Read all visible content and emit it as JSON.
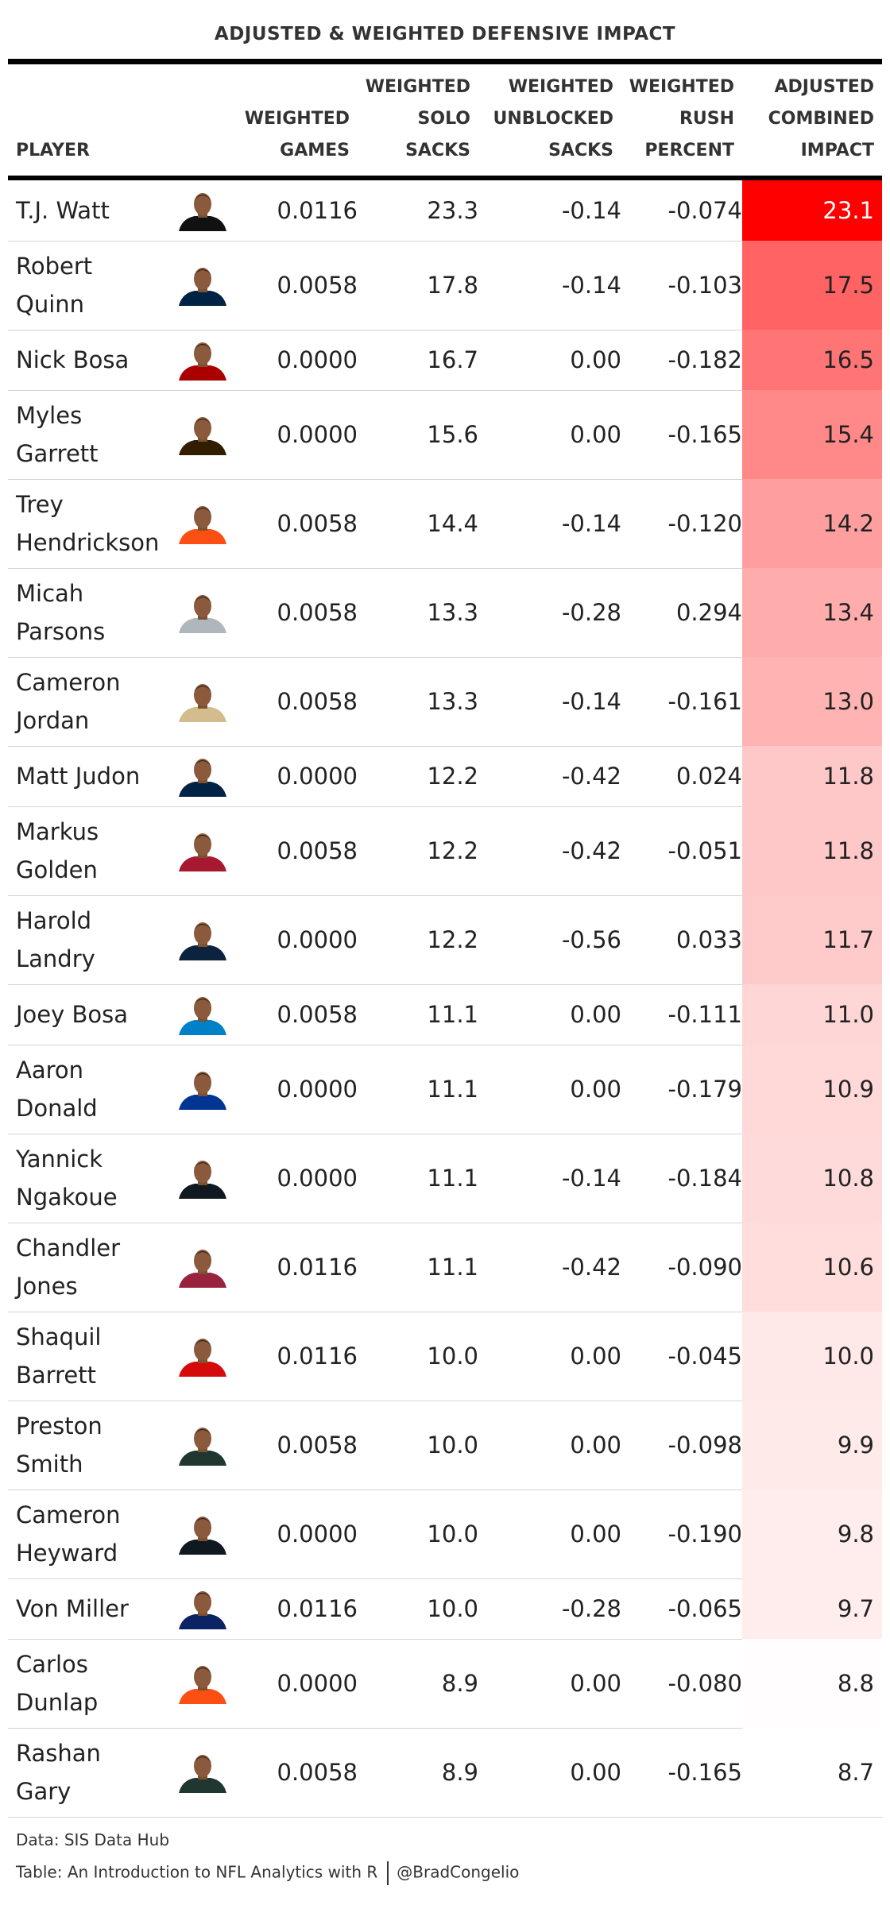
{
  "title": "ADJUSTED & WEIGHTED DEFENSIVE IMPACT",
  "headers": {
    "player": [
      "PLAYER"
    ],
    "games": [
      "WEIGHTED",
      "GAMES"
    ],
    "solo": [
      "WEIGHTED",
      "SOLO",
      "SACKS"
    ],
    "unblocked": [
      "WEIGHTED",
      "UNBLOCKED",
      "SACKS"
    ],
    "rush": [
      "WEIGHTED",
      "RUSH",
      "PERCENT"
    ],
    "impact": [
      "ADJUSTED",
      "COMBINED",
      "IMPACT"
    ]
  },
  "colors": {
    "scale_high": "#ff0000",
    "scale_low": "#ffffff",
    "text_dark": "#222222",
    "text_light": "#ffffff",
    "headshot_team_colors": [
      "#111111",
      "#002244",
      "#aa0000",
      "#311d00",
      "#fb4f14",
      "#b0b7bc",
      "#d3bc8d",
      "#002244",
      "#a71930",
      "#0c2340",
      "#0080c6",
      "#003594",
      "#101820",
      "#97233f",
      "#d50a0a",
      "#203731",
      "#101820",
      "#0b2265",
      "#fb4f14",
      "#203731"
    ]
  },
  "chart_data": {
    "type": "table",
    "title": "ADJUSTED & WEIGHTED DEFENSIVE IMPACT",
    "columns": [
      "PLAYER",
      "WEIGHTED GAMES",
      "WEIGHTED SOLO SACKS",
      "WEIGHTED UNBLOCKED SACKS",
      "WEIGHTED RUSH PERCENT",
      "ADJUSTED COMBINED IMPACT"
    ],
    "rows": [
      {
        "player": [
          "T.J. Watt"
        ],
        "games": "0.0116",
        "solo": "23.3",
        "unblocked": "-0.14",
        "rush": "-0.074",
        "impact": "23.1"
      },
      {
        "player": [
          "Robert",
          "Quinn"
        ],
        "games": "0.0058",
        "solo": "17.8",
        "unblocked": "-0.14",
        "rush": "-0.103",
        "impact": "17.5"
      },
      {
        "player": [
          "Nick Bosa"
        ],
        "games": "0.0000",
        "solo": "16.7",
        "unblocked": "0.00",
        "rush": "-0.182",
        "impact": "16.5"
      },
      {
        "player": [
          "Myles",
          "Garrett"
        ],
        "games": "0.0000",
        "solo": "15.6",
        "unblocked": "0.00",
        "rush": "-0.165",
        "impact": "15.4"
      },
      {
        "player": [
          "Trey",
          "Hendrickson"
        ],
        "games": "0.0058",
        "solo": "14.4",
        "unblocked": "-0.14",
        "rush": "-0.120",
        "impact": "14.2"
      },
      {
        "player": [
          "Micah",
          "Parsons"
        ],
        "games": "0.0058",
        "solo": "13.3",
        "unblocked": "-0.28",
        "rush": "0.294",
        "impact": "13.4"
      },
      {
        "player": [
          "Cameron",
          "Jordan"
        ],
        "games": "0.0058",
        "solo": "13.3",
        "unblocked": "-0.14",
        "rush": "-0.161",
        "impact": "13.0"
      },
      {
        "player": [
          "Matt Judon"
        ],
        "games": "0.0000",
        "solo": "12.2",
        "unblocked": "-0.42",
        "rush": "0.024",
        "impact": "11.8"
      },
      {
        "player": [
          "Markus",
          "Golden"
        ],
        "games": "0.0058",
        "solo": "12.2",
        "unblocked": "-0.42",
        "rush": "-0.051",
        "impact": "11.8"
      },
      {
        "player": [
          "Harold",
          "Landry"
        ],
        "games": "0.0000",
        "solo": "12.2",
        "unblocked": "-0.56",
        "rush": "0.033",
        "impact": "11.7"
      },
      {
        "player": [
          "Joey Bosa"
        ],
        "games": "0.0058",
        "solo": "11.1",
        "unblocked": "0.00",
        "rush": "-0.111",
        "impact": "11.0"
      },
      {
        "player": [
          "Aaron",
          "Donald"
        ],
        "games": "0.0000",
        "solo": "11.1",
        "unblocked": "0.00",
        "rush": "-0.179",
        "impact": "10.9"
      },
      {
        "player": [
          "Yannick",
          "Ngakoue"
        ],
        "games": "0.0000",
        "solo": "11.1",
        "unblocked": "-0.14",
        "rush": "-0.184",
        "impact": "10.8"
      },
      {
        "player": [
          "Chandler",
          "Jones"
        ],
        "games": "0.0116",
        "solo": "11.1",
        "unblocked": "-0.42",
        "rush": "-0.090",
        "impact": "10.6"
      },
      {
        "player": [
          "Shaquil",
          "Barrett"
        ],
        "games": "0.0116",
        "solo": "10.0",
        "unblocked": "0.00",
        "rush": "-0.045",
        "impact": "10.0"
      },
      {
        "player": [
          "Preston",
          "Smith"
        ],
        "games": "0.0058",
        "solo": "10.0",
        "unblocked": "0.00",
        "rush": "-0.098",
        "impact": "9.9"
      },
      {
        "player": [
          "Cameron",
          "Heyward"
        ],
        "games": "0.0000",
        "solo": "10.0",
        "unblocked": "0.00",
        "rush": "-0.190",
        "impact": "9.8"
      },
      {
        "player": [
          "Von Miller"
        ],
        "games": "0.0116",
        "solo": "10.0",
        "unblocked": "-0.28",
        "rush": "-0.065",
        "impact": "9.7"
      },
      {
        "player": [
          "Carlos",
          "Dunlap"
        ],
        "games": "0.0000",
        "solo": "8.9",
        "unblocked": "0.00",
        "rush": "-0.080",
        "impact": "8.8"
      },
      {
        "player": [
          "Rashan",
          "Gary"
        ],
        "games": "0.0058",
        "solo": "8.9",
        "unblocked": "0.00",
        "rush": "-0.165",
        "impact": "8.7"
      }
    ],
    "color_scale": {
      "column": "ADJUSTED COMBINED IMPACT",
      "domain": [
        8.7,
        23.1
      ]
    }
  },
  "footer": {
    "source": "Data: SIS Data Hub",
    "credit": "Table: An Introduction to NFL Analytics with R",
    "handle": "@BradCongelio"
  }
}
